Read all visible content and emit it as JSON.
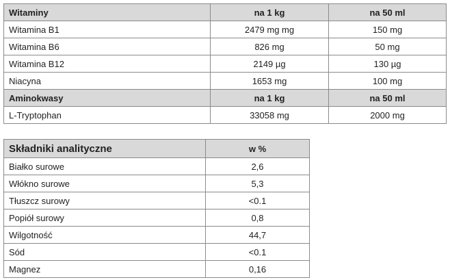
{
  "table1": {
    "sections": [
      {
        "header": [
          "Witaminy",
          "na 1 kg",
          "na 50 ml"
        ],
        "rows": [
          [
            "Witamina B1",
            "2479 mg mg",
            "150 mg"
          ],
          [
            "Witamina B6",
            "826 mg",
            "50 mg"
          ],
          [
            "Witamina B12",
            "2149 µg",
            "130 µg"
          ],
          [
            "Niacyna",
            "1653 mg",
            "100 mg"
          ]
        ]
      },
      {
        "header": [
          "Aminokwasy",
          "na 1 kg",
          "na 50 ml"
        ],
        "rows": [
          [
            "L-Tryptophan",
            "33058 mg",
            "2000 mg"
          ]
        ]
      }
    ]
  },
  "table2": {
    "header": [
      "Składniki analityczne",
      "w %"
    ],
    "rows": [
      [
        "Białko surowe",
        "2,6"
      ],
      [
        "Włókno surowe",
        "5,3"
      ],
      [
        "Tłuszcz surowy",
        "<0.1"
      ],
      [
        "Popiół surowy",
        "0,8"
      ],
      [
        "Wilgotność",
        "44,7"
      ],
      [
        "Sód",
        "<0.1"
      ],
      [
        "Magnez",
        "0,16"
      ]
    ]
  }
}
